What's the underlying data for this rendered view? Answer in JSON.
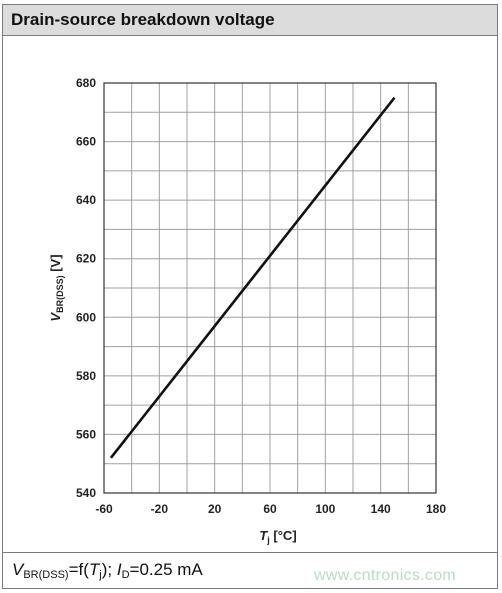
{
  "header": {
    "title": "Drain-source breakdown voltage"
  },
  "caption": {
    "v": "V",
    "v_sub": "BR(DSS)",
    "eq": "=f(",
    "t": "T",
    "t_sub": "j",
    "mid": "); ",
    "i": "I",
    "i_sub": "D",
    "tail": "=0.25 mA"
  },
  "watermark": "www.cntronics.com",
  "chart_data": {
    "type": "line",
    "title": "Drain-source breakdown voltage",
    "xlabel": {
      "main": "T",
      "sub": "j",
      "unit": " [°C]"
    },
    "ylabel": {
      "main": "V",
      "sub": "BR(DSS)",
      "unit": " [V]"
    },
    "xlim": [
      -60,
      180
    ],
    "ylim": [
      540,
      680
    ],
    "xticks": [
      -60,
      -20,
      20,
      60,
      100,
      140,
      180
    ],
    "yticks": [
      540,
      560,
      580,
      600,
      620,
      640,
      660,
      680
    ],
    "grid": true,
    "series": [
      {
        "x": [
          -55,
          150
        ],
        "y": [
          552,
          675
        ]
      }
    ],
    "colors": {
      "line": "#111111",
      "grid": "#a0a0a0",
      "axes": "#333333"
    }
  }
}
